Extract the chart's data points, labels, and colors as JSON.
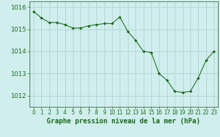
{
  "x": [
    0,
    1,
    2,
    3,
    4,
    5,
    6,
    7,
    8,
    9,
    10,
    11,
    12,
    13,
    14,
    15,
    16,
    17,
    18,
    19,
    20,
    21,
    22,
    23
  ],
  "y": [
    1015.8,
    1015.5,
    1015.3,
    1015.3,
    1015.2,
    1015.05,
    1015.05,
    1015.15,
    1015.2,
    1015.25,
    1015.25,
    1015.55,
    1014.9,
    1014.5,
    1014.0,
    1013.95,
    1013.0,
    1012.7,
    1012.2,
    1012.15,
    1012.2,
    1012.8,
    1013.6,
    1014.0
  ],
  "line_color": "#1a6b1a",
  "marker_color": "#1a6b1a",
  "bg_color": "#d0eeee",
  "grid_color": "#aacccc",
  "xlabel": "Graphe pression niveau de la mer (hPa)",
  "xlabel_color": "#1a6b1a",
  "ylabel_ticks": [
    1012,
    1013,
    1014,
    1015,
    1016
  ],
  "xlim": [
    -0.5,
    23.5
  ],
  "ylim": [
    1011.5,
    1016.25
  ],
  "tick_color": "#1a6b1a",
  "axis_color": "#336633",
  "ytick_fontsize": 6.5,
  "xtick_fontsize": 5.5,
  "xlabel_fontsize": 7.0
}
